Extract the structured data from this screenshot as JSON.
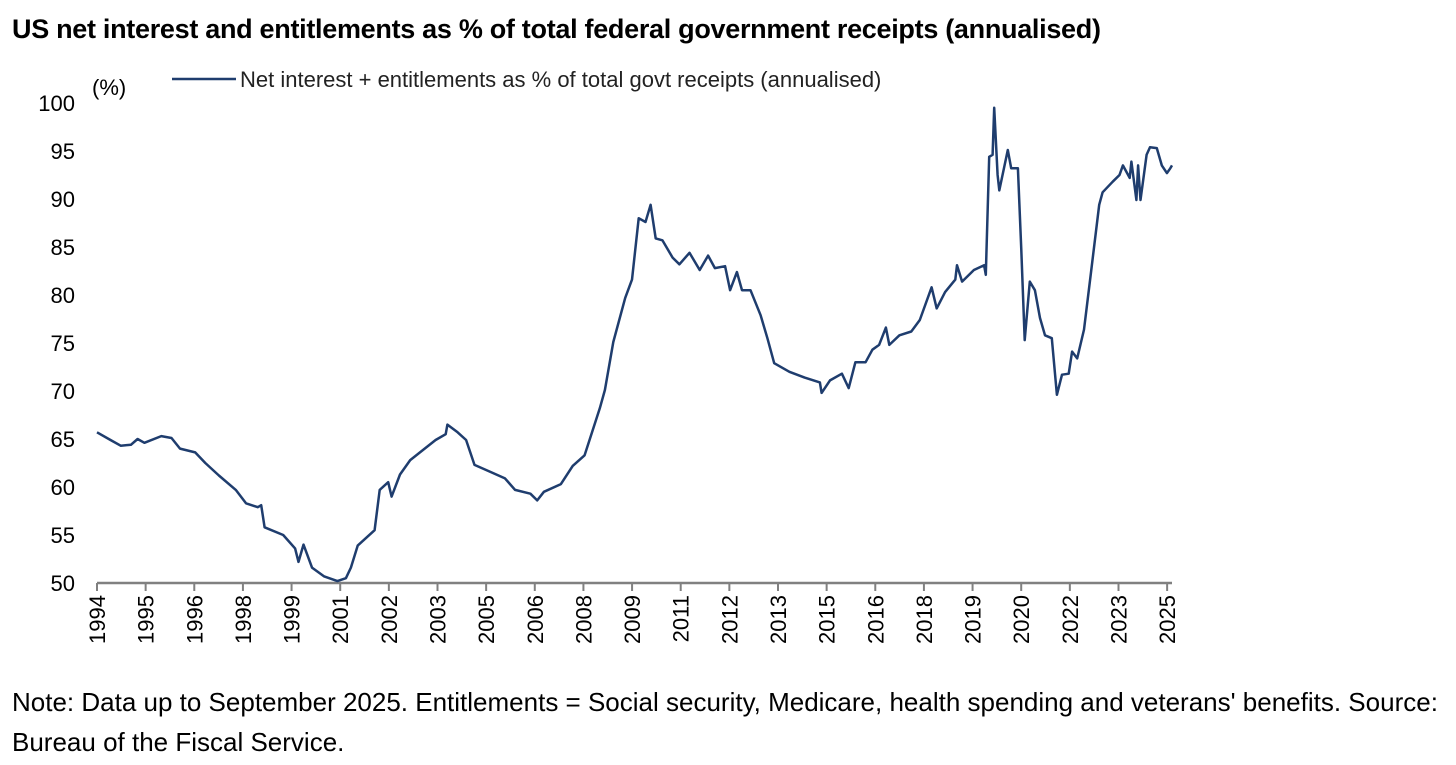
{
  "title": "US net interest and entitlements as % of total federal government receipts (annualised)",
  "note": "Note: Data up to September 2025. Entitlements = Social security, Medicare, health spending and veterans' benefits. Source: Bureau of the Fiscal Service.",
  "chart_data": {
    "type": "line",
    "title": "US net interest and entitlements as % of total federal government receipts (annualised)",
    "ylabel": "(%)",
    "xlabel": "",
    "ylim": [
      50,
      100
    ],
    "xlim": [
      1994.0,
      2025.75
    ],
    "yticks": [
      50,
      55,
      60,
      65,
      70,
      75,
      80,
      85,
      90,
      95,
      100
    ],
    "xtick_labels": [
      "1994",
      "1995",
      "1996",
      "1998",
      "1999",
      "2001",
      "2002",
      "2003",
      "2005",
      "2006",
      "2008",
      "2009",
      "2011",
      "2012",
      "2013",
      "2015",
      "2016",
      "2018",
      "2019",
      "2020",
      "2022",
      "2023",
      "2025"
    ],
    "grid": false,
    "legend_position": "top",
    "color": "#1f3d6e",
    "series": [
      {
        "name": "Net interest + entitlements as % of total govt receipts (annualised)",
        "x": [
          1994.0,
          1994.4,
          1994.7,
          1995.0,
          1995.2,
          1995.4,
          1995.9,
          1996.2,
          1996.45,
          1996.9,
          1997.2,
          1997.6,
          1998.1,
          1998.4,
          1998.75,
          1998.85,
          1998.95,
          1999.5,
          1999.85,
          1999.95,
          2000.1,
          2000.35,
          2000.7,
          2001.1,
          2001.35,
          2001.5,
          2001.7,
          2002.2,
          2002.35,
          2002.6,
          2002.7,
          2002.95,
          2003.25,
          2003.5,
          2004.0,
          2004.3,
          2004.35,
          2004.65,
          2004.9,
          2005.15,
          2005.6,
          2006.05,
          2006.35,
          2006.8,
          2007.0,
          2007.2,
          2007.7,
          2008.05,
          2008.4,
          2008.85,
          2009.0,
          2009.25,
          2009.6,
          2009.8,
          2010.0,
          2010.2,
          2010.35,
          2010.5,
          2010.7,
          2011.0,
          2011.2,
          2011.5,
          2011.8,
          2012.05,
          2012.25,
          2012.55,
          2012.7,
          2012.9,
          2013.05,
          2013.3,
          2013.6,
          2013.8,
          2014.0,
          2014.45,
          2014.9,
          2015.35,
          2015.4,
          2015.65,
          2016.0,
          2016.2,
          2016.4,
          2016.7,
          2016.9,
          2017.1,
          2017.3,
          2017.4,
          2017.7,
          2018.05,
          2018.3,
          2018.65,
          2018.8,
          2019.05,
          2019.35,
          2019.4,
          2019.55,
          2019.9,
          2020.2,
          2020.25,
          2020.35,
          2020.45,
          2020.5,
          2020.6,
          2020.65,
          2020.9,
          2021.0,
          2021.2,
          2021.3,
          2021.4,
          2021.55,
          2021.7,
          2021.85,
          2022.0,
          2022.2,
          2022.35,
          2022.5,
          2022.7,
          2022.8,
          2022.95,
          2023.15,
          2023.35,
          2023.6,
          2023.7,
          2024.0,
          2024.2,
          2024.3,
          2024.5,
          2024.55,
          2024.7,
          2024.75,
          2024.82,
          2025.0,
          2025.1,
          2025.3,
          2025.45,
          2025.6,
          2025.7,
          2025.75
        ],
        "values": [
          65.7,
          64.9,
          64.3,
          64.4,
          65.0,
          64.6,
          65.3,
          65.1,
          64.0,
          63.6,
          62.5,
          61.2,
          59.7,
          58.3,
          57.9,
          58.1,
          55.8,
          55.0,
          53.6,
          52.2,
          54.0,
          51.6,
          50.7,
          50.2,
          50.5,
          51.6,
          53.9,
          55.5,
          59.7,
          60.5,
          59.0,
          61.3,
          62.8,
          63.5,
          64.9,
          65.5,
          66.5,
          65.7,
          64.9,
          62.3,
          61.6,
          60.9,
          59.7,
          59.3,
          58.6,
          59.5,
          60.3,
          62.2,
          63.3,
          68.2,
          70.1,
          75.1,
          79.7,
          81.6,
          88.0,
          87.6,
          89.4,
          85.9,
          85.7,
          83.9,
          83.2,
          84.4,
          82.6,
          84.1,
          82.8,
          83.0,
          80.5,
          82.4,
          80.5,
          80.5,
          77.9,
          75.5,
          72.9,
          72.0,
          71.4,
          70.9,
          69.8,
          71.1,
          71.8,
          70.3,
          73.0,
          73.0,
          74.3,
          74.8,
          76.6,
          74.8,
          75.8,
          76.2,
          77.4,
          80.8,
          78.6,
          80.3,
          81.6,
          83.1,
          81.4,
          82.6,
          83.1,
          82.1,
          94.4,
          94.6,
          99.5,
          92.5,
          90.9,
          95.1,
          93.2,
          93.2,
          84.7,
          75.3,
          81.4,
          80.5,
          77.6,
          75.8,
          75.5,
          69.6,
          71.7,
          71.8,
          74.1,
          73.4,
          76.4,
          82.1,
          89.4,
          90.7,
          91.8,
          92.5,
          93.5,
          92.2,
          93.9,
          89.9,
          93.5,
          89.9,
          94.6,
          95.4,
          95.3,
          93.5,
          92.7,
          93.2,
          93.5
        ]
      }
    ]
  }
}
